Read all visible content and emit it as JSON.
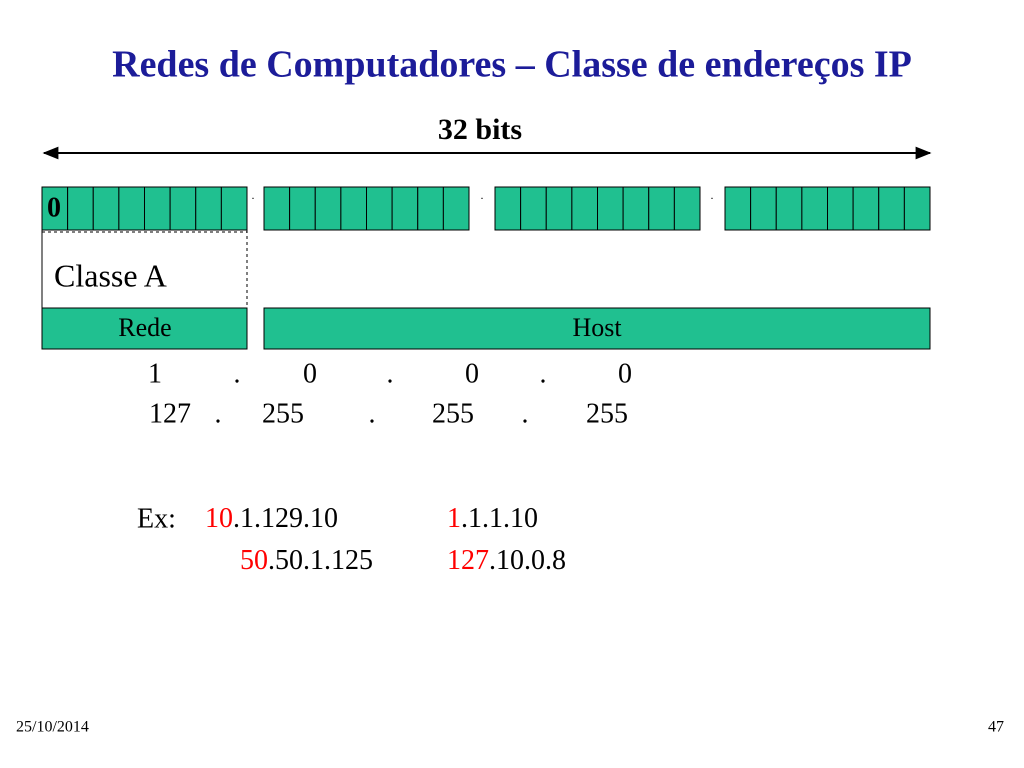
{
  "header": {
    "title": "Redes de Computadores – Classe de endereços IP"
  },
  "diagram": {
    "width_label": "32 bits",
    "first_bit": "0",
    "separators": [
      ".",
      ".",
      "."
    ],
    "class_label": "Classe A",
    "fields": [
      "Rede",
      "Host"
    ],
    "ranges": [
      [
        "1",
        ".",
        "0",
        ".",
        "0",
        ".",
        "0"
      ],
      [
        "127",
        ".",
        "255",
        ".",
        "255",
        ".",
        "255"
      ]
    ]
  },
  "examples": {
    "label": "Ex:",
    "items": [
      {
        "network": "10",
        "rest": ".1.129.10"
      },
      {
        "network": "1",
        "rest": ".1.1.10"
      },
      {
        "network": "50",
        "rest": ".50.1.125"
      },
      {
        "network": "127",
        "rest": ".10.0.8"
      }
    ]
  },
  "footer": {
    "date": "25/10/2014",
    "page": "47"
  }
}
